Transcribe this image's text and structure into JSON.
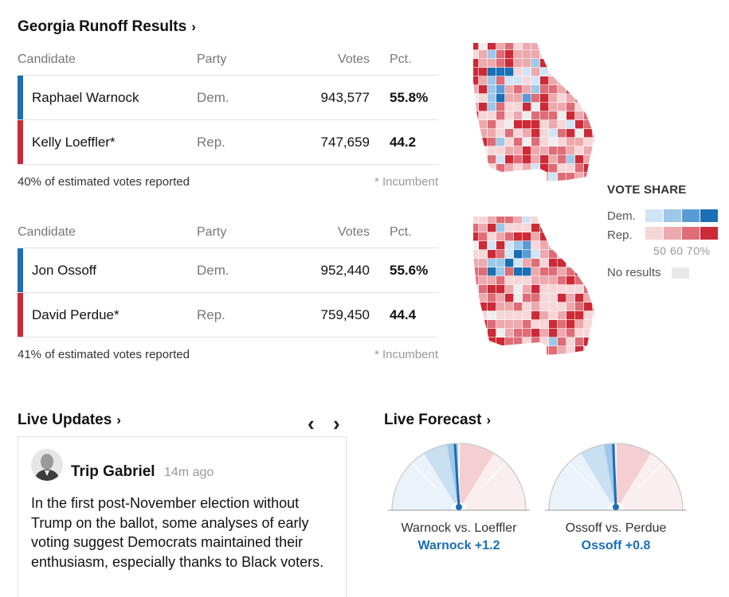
{
  "results_title": "Georgia Runoff Results",
  "results_chevron": "›",
  "columns": {
    "candidate": "Candidate",
    "party": "Party",
    "votes": "Votes",
    "pct": "Pct."
  },
  "races": [
    {
      "candidates": [
        {
          "name": "Raphael Warnock",
          "party": "Dem.",
          "votes": "943,577",
          "pct": "55.8%",
          "bar_color": "#1a6fb5"
        },
        {
          "name": "Kelly Loeffler*",
          "party": "Rep.",
          "votes": "747,659",
          "pct": "44.2",
          "bar_color": "#cc2a36"
        }
      ],
      "reported": "40% of estimated votes reported",
      "incumbent_note": "* Incumbent"
    },
    {
      "candidates": [
        {
          "name": "Jon Ossoff",
          "party": "Dem.",
          "votes": "952,440",
          "pct": "55.6%",
          "bar_color": "#1a6fb5"
        },
        {
          "name": "David Perdue*",
          "party": "Rep.",
          "votes": "759,450",
          "pct": "44.4",
          "bar_color": "#cc2a36"
        }
      ],
      "reported": "41% of estimated votes reported",
      "incumbent_note": "* Incumbent"
    }
  ],
  "legend": {
    "title": "VOTE SHARE",
    "dem_label": "Dem.",
    "rep_label": "Rep.",
    "dem_colors": [
      "#cfe5f7",
      "#9ec8ea",
      "#5a9bd5",
      "#1a6fb5"
    ],
    "rep_colors": [
      "#f7d6d8",
      "#eda9ae",
      "#de6d77",
      "#cc2a36"
    ],
    "ticks": "50 60 70%",
    "no_results": "No results",
    "no_results_color": "#e9e9e9"
  },
  "live_updates": {
    "title": "Live Updates",
    "chevron": "›",
    "prev_arrow": "‹",
    "next_arrow": "›",
    "author": "Trip Gabriel",
    "time_ago": "14m ago",
    "text": "In the first post-November election without Trump on the ballot, some analyses of early voting suggest Democrats maintained their enthusiasm, especially thanks to Black voters."
  },
  "live_forecast": {
    "title": "Live Forecast",
    "chevron": "›",
    "gauges": [
      {
        "label": "Warnock vs. Loeffler",
        "value": "Warnock +1.2",
        "needle_margin": 1.2
      },
      {
        "label": "Ossoff vs. Perdue",
        "value": "Ossoff +0.8",
        "needle_margin": 0.8
      }
    ]
  }
}
